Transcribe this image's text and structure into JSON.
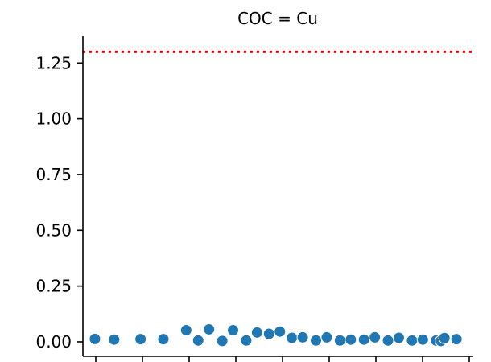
{
  "chart_data": {
    "type": "scatter",
    "title": "COC = Cu",
    "xlabel": "",
    "ylabel": "",
    "ylim": [
      -0.065,
      1.37
    ],
    "y_ticks": [
      {
        "value": 0.0,
        "label": "0.00"
      },
      {
        "value": 0.25,
        "label": "0.25"
      },
      {
        "value": 0.5,
        "label": "0.50"
      },
      {
        "value": 0.75,
        "label": "0.75"
      },
      {
        "value": 1.0,
        "label": "1.00"
      },
      {
        "value": 1.25,
        "label": "1.25"
      }
    ],
    "x_tick_count": 9,
    "xlim": [
      0,
      32.5
    ],
    "threshold_line": {
      "value": 1.3,
      "color": "#ff0000",
      "style": "dotted"
    },
    "marker_color": "#1f77b4",
    "points": [
      {
        "x": 1,
        "y": 0.013
      },
      {
        "x": 2.6,
        "y": 0.01
      },
      {
        "x": 4.8,
        "y": 0.012
      },
      {
        "x": 6.7,
        "y": 0.012
      },
      {
        "x": 8.6,
        "y": 0.052
      },
      {
        "x": 9.6,
        "y": 0.006
      },
      {
        "x": 10.5,
        "y": 0.056
      },
      {
        "x": 11.6,
        "y": 0.004
      },
      {
        "x": 12.5,
        "y": 0.052
      },
      {
        "x": 13.6,
        "y": 0.006
      },
      {
        "x": 14.5,
        "y": 0.042
      },
      {
        "x": 15.5,
        "y": 0.036
      },
      {
        "x": 16.4,
        "y": 0.046
      },
      {
        "x": 17.4,
        "y": 0.018
      },
      {
        "x": 18.3,
        "y": 0.02
      },
      {
        "x": 19.4,
        "y": 0.006
      },
      {
        "x": 20.3,
        "y": 0.02
      },
      {
        "x": 21.4,
        "y": 0.006
      },
      {
        "x": 22.3,
        "y": 0.01
      },
      {
        "x": 23.4,
        "y": 0.01
      },
      {
        "x": 24.3,
        "y": 0.02
      },
      {
        "x": 25.4,
        "y": 0.006
      },
      {
        "x": 26.3,
        "y": 0.018
      },
      {
        "x": 27.4,
        "y": 0.006
      },
      {
        "x": 28.3,
        "y": 0.01
      },
      {
        "x": 29.4,
        "y": 0.006
      },
      {
        "x": 29.8,
        "y": 0.004
      },
      {
        "x": 30.1,
        "y": 0.017
      },
      {
        "x": 31.1,
        "y": 0.012
      }
    ]
  }
}
